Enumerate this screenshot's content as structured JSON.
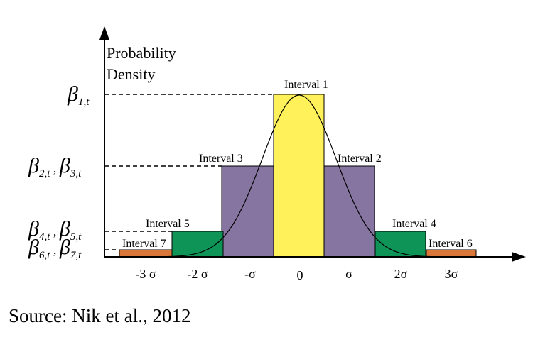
{
  "colors": {
    "interval1": "#fff159",
    "interval2_3": "#8674a1",
    "interval4_5": "#0f9457",
    "interval6_7": "#d9773a",
    "axis": "#000000",
    "curve": "#000000"
  },
  "y_axis": {
    "label_line1": "Probability",
    "label_line2": "Density"
  },
  "beta_labels": [
    {
      "text": "β",
      "sub": "1,t",
      "sep": "",
      "text2": "",
      "sub2": ""
    },
    {
      "text": "β",
      "sub": "2,t",
      "sep": " , ",
      "text2": "β",
      "sub2": "3,t"
    },
    {
      "text": "β",
      "sub": "4,t",
      "sep": " , ",
      "text2": "β",
      "sub2": "5,t"
    },
    {
      "text": "β",
      "sub": "6,t",
      "sep": " , ",
      "text2": "β",
      "sub2": "7,t"
    }
  ],
  "intervals": [
    {
      "label": "Interval 1"
    },
    {
      "label": "Interval 2"
    },
    {
      "label": "Interval 3"
    },
    {
      "label": "Interval 4"
    },
    {
      "label": "Interval 5"
    },
    {
      "label": "Interval 6"
    },
    {
      "label": "Interval 7"
    }
  ],
  "x_ticks": [
    "-3 σ",
    "-2 σ",
    "-σ",
    "0",
    "σ",
    "2σ",
    "3σ"
  ],
  "source": "Source: Nik et al., 2012"
}
